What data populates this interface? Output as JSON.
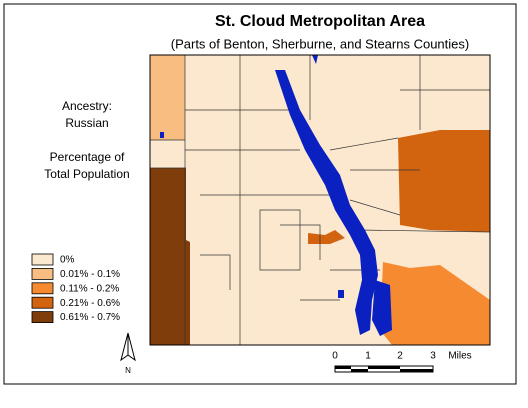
{
  "title": "St. Cloud Metropolitan Area",
  "subtitle": "(Parts of Benton, Sherburne, and Stearns Counties)",
  "side_text": {
    "heading": "Ancestry:",
    "ancestry": "Russian",
    "measure_line1": "Percentage of",
    "measure_line2": "Total Population"
  },
  "legend": {
    "items": [
      {
        "label": "0%",
        "color": "#fbe8cf"
      },
      {
        "label": "0.01% - 0.1%",
        "color": "#f8bd80"
      },
      {
        "label": "0.11% - 0.2%",
        "color": "#f58a30"
      },
      {
        "label": "0.21% - 0.6%",
        "color": "#d2640f"
      },
      {
        "label": "0.61% - 0.7%",
        "color": "#7e3d0a"
      }
    ]
  },
  "water_color": "#0b20c0",
  "scale_bar": {
    "ticks": [
      "0",
      "1",
      "2",
      "3"
    ],
    "unit": "Miles"
  },
  "north_arrow": "N"
}
